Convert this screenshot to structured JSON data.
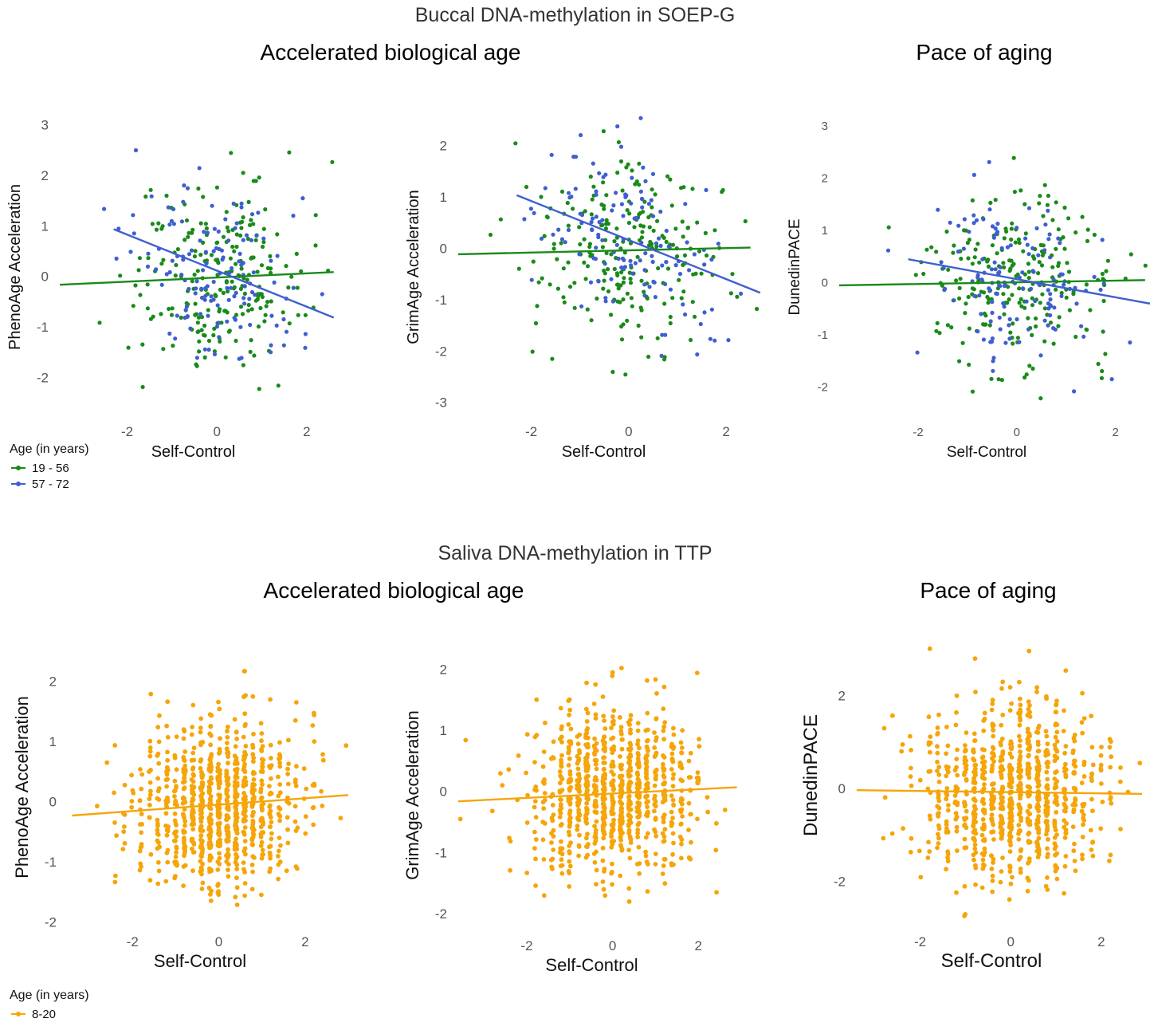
{
  "sections": {
    "top_title": "Buccal DNA-methylation in SOEP-G",
    "bottom_title": "Saliva DNA-methylation in TTP",
    "group_left": "Accelerated biological age",
    "group_right": "Pace of aging"
  },
  "legends": {
    "top": {
      "title": "Age (in years)",
      "items": [
        {
          "label": "19 - 56",
          "color": "#1a8a1a"
        },
        {
          "label": "57 - 72",
          "color": "#3f5fcf"
        }
      ]
    },
    "bottom": {
      "title": "Age (in years)",
      "items": [
        {
          "label": "8-20",
          "color": "#f5a50a"
        }
      ]
    }
  },
  "chart_data": [
    {
      "type": "scatter",
      "cohort": "SOEP-G",
      "xlabel": "Self-Control",
      "ylabel": "PhenoAge Acceleration",
      "xlim": [
        -3.5,
        2.8
      ],
      "ylim": [
        -2.8,
        3.2
      ],
      "xticks": [
        -2,
        0,
        2
      ],
      "yticks": [
        -2,
        -1,
        0,
        1,
        2,
        3
      ],
      "series": [
        {
          "name": "19 - 56",
          "color": "#1a8a1a",
          "n_points": 230,
          "fit": {
            "x": [
              -3.5,
              2.6
            ],
            "y": [
              -0.15,
              0.1
            ]
          }
        },
        {
          "name": "57 - 72",
          "color": "#3f5fcf",
          "n_points": 140,
          "fit": {
            "x": [
              -2.3,
              2.6
            ],
            "y": [
              0.95,
              -0.8
            ]
          }
        }
      ]
    },
    {
      "type": "scatter",
      "cohort": "SOEP-G",
      "xlabel": "Self-Control",
      "ylabel": "GrimAge Acceleration",
      "xlim": [
        -3.5,
        2.8
      ],
      "ylim": [
        -3.3,
        2.6
      ],
      "xticks": [
        -2,
        0,
        2
      ],
      "yticks": [
        -3,
        -2,
        -1,
        0,
        1,
        2
      ],
      "series": [
        {
          "name": "19 - 56",
          "color": "#1a8a1a",
          "n_points": 230,
          "fit": {
            "x": [
              -3.5,
              2.5
            ],
            "y": [
              -0.1,
              0.03
            ]
          }
        },
        {
          "name": "57 - 72",
          "color": "#3f5fcf",
          "n_points": 140,
          "fit": {
            "x": [
              -2.3,
              2.7
            ],
            "y": [
              1.05,
              -0.85
            ]
          }
        }
      ]
    },
    {
      "type": "scatter",
      "cohort": "SOEP-G",
      "xlabel": "Self-Control",
      "ylabel": "DunedinPACE",
      "xlim": [
        -3.6,
        2.7
      ],
      "ylim": [
        -2.6,
        3.2
      ],
      "xticks": [
        -2,
        0,
        2
      ],
      "yticks": [
        -2,
        -1,
        0,
        1,
        2,
        3
      ],
      "series": [
        {
          "name": "19 - 56",
          "color": "#1a8a1a",
          "n_points": 230,
          "fit": {
            "x": [
              -3.6,
              2.6
            ],
            "y": [
              -0.05,
              0.05
            ]
          }
        },
        {
          "name": "57 - 72",
          "color": "#3f5fcf",
          "n_points": 140,
          "fit": {
            "x": [
              -2.2,
              2.7
            ],
            "y": [
              0.45,
              -0.4
            ]
          }
        }
      ]
    },
    {
      "type": "scatter",
      "cohort": "TTP",
      "xlabel": "Self-Control",
      "ylabel": "PhenoAge Acceleration",
      "xlim": [
        -3.5,
        3.0
      ],
      "ylim": [
        -2.1,
        2.6
      ],
      "xticks": [
        -2,
        0,
        2
      ],
      "yticks": [
        -2,
        -1,
        0,
        1,
        2
      ],
      "series": [
        {
          "name": "8-20",
          "color": "#f5a50a",
          "n_points": 900,
          "fit": {
            "x": [
              -3.4,
              3.0
            ],
            "y": [
              -0.22,
              0.12
            ]
          }
        }
      ]
    },
    {
      "type": "scatter",
      "cohort": "TTP",
      "xlabel": "Self-Control",
      "ylabel": "GrimAge Acceleration",
      "xlim": [
        -3.6,
        3.0
      ],
      "ylim": [
        -2.3,
        2.2
      ],
      "xticks": [
        -2,
        0,
        2
      ],
      "yticks": [
        -2,
        -1,
        0,
        1,
        2
      ],
      "series": [
        {
          "name": "8-20",
          "color": "#f5a50a",
          "n_points": 900,
          "fit": {
            "x": [
              -3.6,
              2.9
            ],
            "y": [
              -0.15,
              0.08
            ]
          }
        }
      ]
    },
    {
      "type": "scatter",
      "cohort": "TTP",
      "xlabel": "Self-Control",
      "ylabel": "DunedinPACE",
      "xlim": [
        -3.4,
        2.9
      ],
      "ylim": [
        -3.0,
        3.6
      ],
      "xticks": [
        -2,
        0,
        2
      ],
      "yticks": [
        -2,
        0,
        2
      ],
      "series": [
        {
          "name": "8-20",
          "color": "#f5a50a",
          "n_points": 900,
          "fit": {
            "x": [
              -3.4,
              2.9
            ],
            "y": [
              -0.02,
              -0.1
            ]
          }
        }
      ]
    }
  ]
}
